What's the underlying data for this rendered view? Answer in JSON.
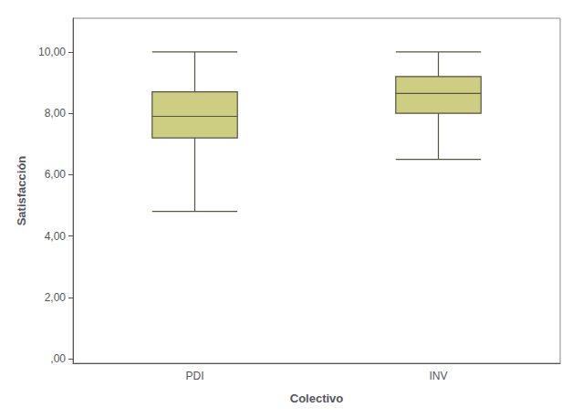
{
  "chart_data": {
    "type": "boxplot",
    "categories": [
      "PDI",
      "INV"
    ],
    "boxes": [
      {
        "whisker_low": 4.8,
        "q1": 7.2,
        "median": 7.9,
        "q3": 8.7,
        "whisker_high": 10.0
      },
      {
        "whisker_low": 6.5,
        "q1": 8.0,
        "median": 8.65,
        "q3": 9.2,
        "whisker_high": 10.0
      }
    ],
    "color": "#cece82",
    "xlabel": "Colectivo",
    "ylabel": "Satisfacción",
    "ylim": [
      -0.15,
      11.1
    ],
    "yticks": [
      {
        "value": 0,
        "label": ",00"
      },
      {
        "value": 2,
        "label": "2,00"
      },
      {
        "value": 4,
        "label": "4,00"
      },
      {
        "value": 6,
        "label": "6,00"
      },
      {
        "value": 8,
        "label": "8,00"
      },
      {
        "value": 10,
        "label": "10,00"
      }
    ],
    "grid": false
  }
}
